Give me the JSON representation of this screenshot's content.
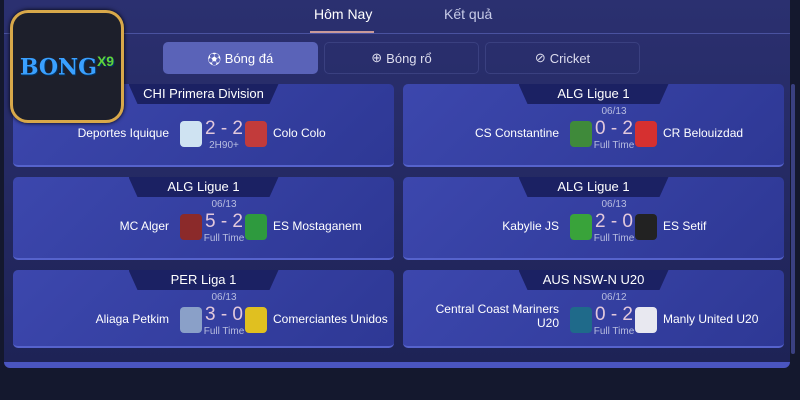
{
  "logo": {
    "text": "BONG",
    "suffix": "X9"
  },
  "tabs": [
    {
      "label": "Hôm Nay",
      "active": true
    },
    {
      "label": "Kết quả",
      "active": false
    }
  ],
  "sports": [
    {
      "label": "Bóng đá",
      "icon": "soccer-ball-icon",
      "active": true
    },
    {
      "label": "Bóng rổ",
      "icon": "basketball-icon"
    },
    {
      "label": "Cricket",
      "icon": "cricket-ball-icon"
    }
  ],
  "matches": [
    {
      "league": "CHI Primera Division",
      "home": "Deportes Iquique",
      "away": "Colo Colo",
      "date": "",
      "score": "2 - 2",
      "status": "2H90+",
      "home_color": "#cfe3f2",
      "away_color": "#c23b3b"
    },
    {
      "league": "ALG Ligue 1",
      "home": "CS Constantine",
      "away": "CR Belouizdad",
      "date": "06/13",
      "score": "0 - 2",
      "status": "Full Time",
      "home_color": "#3f8a3a",
      "away_color": "#d63030"
    },
    {
      "league": "ALG Ligue 1",
      "home": "MC Alger",
      "away": "ES Mostaganem",
      "date": "06/13",
      "score": "5 - 2",
      "status": "Full Time",
      "home_color": "#8b2a2a",
      "away_color": "#2e9a3e"
    },
    {
      "league": "ALG Ligue 1",
      "home": "Kabylie JS",
      "away": "ES Setif",
      "date": "06/13",
      "score": "2 - 0",
      "status": "Full Time",
      "home_color": "#39a33a",
      "away_color": "#222222"
    },
    {
      "league": "PER Liga 1",
      "home": "Aliaga Petkim",
      "away": "Comerciantes Unidos",
      "date": "06/13",
      "score": "3 - 0",
      "status": "Full Time",
      "home_color": "#8aa0c8",
      "away_color": "#e0c020"
    },
    {
      "league": "AUS NSW-N U20",
      "home": "Central Coast Mariners U20",
      "away": "Manly United U20",
      "date": "06/12",
      "score": "0 - 2",
      "status": "Full Time",
      "home_color": "#1f6a8a",
      "away_color": "#e8e8f0"
    }
  ]
}
